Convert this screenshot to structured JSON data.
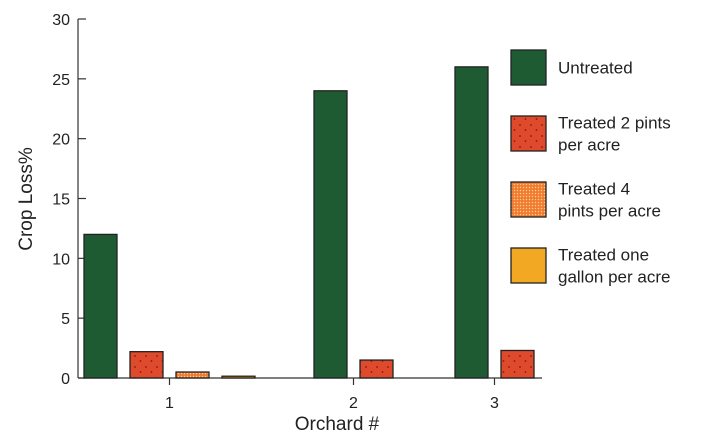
{
  "chart_data": {
    "type": "bar",
    "title": "",
    "xlabel": "Orchard #",
    "ylabel": "Crop Loss%",
    "ylim": [
      0,
      30
    ],
    "yticks": [
      0,
      5,
      10,
      15,
      20,
      25,
      30
    ],
    "categories": [
      "1",
      "2",
      "3"
    ],
    "grid": false,
    "legend_position": "right",
    "series": [
      {
        "name": "Untreated",
        "values": [
          12,
          24,
          26
        ],
        "color": "#1e5a32",
        "pattern": "solid"
      },
      {
        "name": "Treated 2 pints per acre",
        "values": [
          2.2,
          1.5,
          2.3
        ],
        "color": "#e04a2c",
        "pattern": "sparse-dots"
      },
      {
        "name": "Treated 4 pints per acre",
        "values": [
          0.5,
          null,
          null
        ],
        "color": "#ef6a2c",
        "pattern": "dense-dots"
      },
      {
        "name": "Treated one gallon per acre",
        "values": [
          0.15,
          null,
          null
        ],
        "color": "#f3a824",
        "pattern": "solid"
      }
    ],
    "legend": [
      {
        "lines": [
          "Untreated"
        ]
      },
      {
        "lines": [
          "Treated 2 pints",
          "per acre"
        ]
      },
      {
        "lines": [
          "Treated 4",
          "pints per acre"
        ]
      },
      {
        "lines": [
          "Treated one",
          "gallon per acre"
        ]
      }
    ]
  }
}
